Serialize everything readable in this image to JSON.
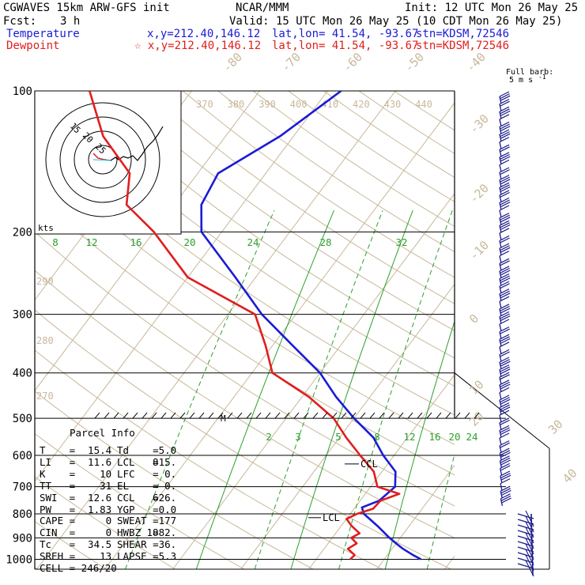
{
  "header": {
    "model": "CGWAVES 15km ARW-GFS init",
    "center": "NCAR/MMM",
    "init": "Init: 12 UTC Mon 26 May 25",
    "fcst_label": "Fcst:",
    "fcst_value": "3 h",
    "valid": "Valid: 15 UTC Mon 26 May 25 (10 CDT Mon 26 May 25)",
    "temp_label": "Temperature",
    "temp_loc": "x,y=212.40,146.12",
    "temp_latlon": "lat,lon= 41.54, -93.67",
    "temp_stn": "stn=KDSM,72546",
    "dew_label": "Dewpoint",
    "dew_loc": "☆ x,y=212.40,146.12",
    "dew_latlon": "lat,lon= 41.54, -93.67",
    "dew_stn": "stn=KDSM,72546"
  },
  "barb_legend": {
    "line1": "Full barb:",
    "line2": "5 m s",
    "sup": "-1"
  },
  "hodograph": {
    "units": "kts",
    "ring_labels": [
      "15",
      "20",
      "25"
    ]
  },
  "parcel": {
    "title": "Parcel Info",
    "rows": [
      {
        "l1": "T",
        "v1": "15.4",
        "l2": "Td",
        "v2": "5.0"
      },
      {
        "l1": "LI",
        "v1": "11.6",
        "l2": "LCL",
        "v2": "815."
      },
      {
        "l1": "K",
        "v1": "10",
        "l2": "LFC",
        "v2": "0."
      },
      {
        "l1": "TT",
        "v1": "31",
        "l2": "EL",
        "v2": "0."
      },
      {
        "l1": "SWI",
        "v1": "12.6",
        "l2": "CCL",
        "v2": "626."
      },
      {
        "l1": "PW",
        "v1": "1.83",
        "l2": "YGP",
        "v2": "0.0"
      },
      {
        "l1": "CAPE",
        "v1": "0",
        "l2": "SWEAT",
        "v2": "177"
      },
      {
        "l1": "CIN",
        "v1": "0",
        "l2": "HWBZ",
        "v2": "1882."
      },
      {
        "l1": "Tc",
        "v1": "34.5",
        "l2": "SHEAR",
        "v2": "36."
      },
      {
        "l1": "SREH",
        "v1": "13",
        "l2": "LAPSE",
        "v2": "5.3"
      }
    ],
    "cell": "CELL = 246/20"
  },
  "annotations": {
    "ccl": "CCL",
    "lcl": "LCL",
    "m": "M"
  },
  "colors": {
    "temperature": "#1b1bd6",
    "dewpoint": "#e01e1e",
    "mixing": "#2ca02c",
    "adiabat": "#c8b89a",
    "isobar": "#000000",
    "barb": "#1a1a8c"
  },
  "chart_data": {
    "type": "line",
    "pressure_levels": [
      "100",
      "200",
      "300",
      "400",
      "500",
      "600",
      "700",
      "800",
      "900",
      "1000"
    ],
    "temperature_axis_labels": [
      "-80",
      "-70",
      "-60",
      "-50",
      "-40",
      "-30",
      "-20",
      "-10",
      "0",
      "10",
      "20",
      "30",
      "40"
    ],
    "theta_labels": [
      "370",
      "380",
      "390",
      "400",
      "410",
      "420",
      "430",
      "440"
    ],
    "theta_left_labels": [
      "290",
      "280",
      "270"
    ],
    "mixing_ratio_top_labels": [
      "8",
      "12",
      "16",
      "20",
      "24",
      "28",
      "32"
    ],
    "mixing_ratio_low_labels": [
      "2",
      "3",
      "5",
      "8",
      "12",
      "16",
      "20",
      "24"
    ],
    "series": [
      {
        "name": "Temperature",
        "p": [
          1000,
          980,
          950,
          925,
          900,
          850,
          800,
          775,
          750,
          700,
          650,
          600,
          550,
          500,
          450,
          400,
          350,
          300,
          250,
          200,
          175,
          150,
          125,
          100
        ],
        "t": [
          15.4,
          13.8,
          11.6,
          10.0,
          8.4,
          5.4,
          2.0,
          1.0,
          2.8,
          3.6,
          2.0,
          -1.6,
          -5.0,
          -10.0,
          -15.0,
          -20.0,
          -27.0,
          -35.0,
          -43.0,
          -53.0,
          -56.0,
          -57.0,
          -52.0,
          -48.0
        ]
      },
      {
        "name": "Dewpoint",
        "p": [
          1000,
          980,
          950,
          925,
          900,
          880,
          850,
          820,
          800,
          780,
          750,
          725,
          700,
          650,
          600,
          550,
          500,
          450,
          400,
          350,
          300,
          250,
          200,
          175,
          150,
          125,
          100
        ],
        "td": [
          5.0,
          5.2,
          3.5,
          4.2,
          2.8,
          3.5,
          1.6,
          0.0,
          1.0,
          2.8,
          3.0,
          5.0,
          1.0,
          -1.2,
          -5.0,
          -9.0,
          -13.0,
          -19.0,
          -27.0,
          -31.0,
          -36.0,
          -50.0,
          -60.0,
          -67.0,
          -70.0,
          -78.0,
          -85.0
        ]
      }
    ]
  }
}
